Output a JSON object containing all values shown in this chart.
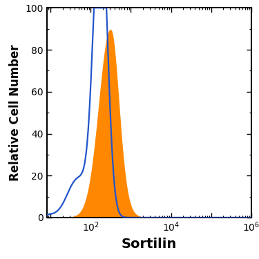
{
  "title": "",
  "xlabel": "Sortilin",
  "ylabel": "Relative Cell Number",
  "xlim": [
    8,
    1000000
  ],
  "ylim": [
    0,
    100
  ],
  "yticks": [
    0,
    20,
    40,
    60,
    80,
    100
  ],
  "background_color": "#ffffff",
  "blue_color": "#2255cc",
  "orange_color": "#ff8800",
  "xlabel_fontsize": 14,
  "ylabel_fontsize": 12,
  "tick_fontsize": 10,
  "figsize": [
    3.75,
    3.75
  ],
  "dpi": 100
}
